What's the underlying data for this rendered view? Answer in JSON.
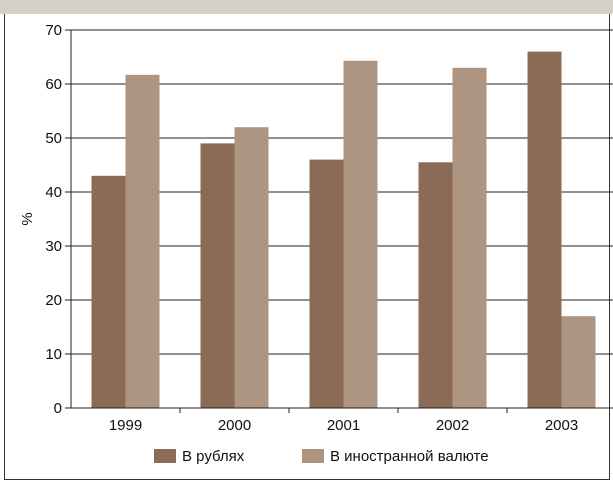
{
  "chart_data": {
    "type": "bar",
    "categories": [
      "1999",
      "2000",
      "2001",
      "2002",
      "2003"
    ],
    "series": [
      {
        "name": "В рублях",
        "values": [
          43,
          49,
          46,
          45.5,
          66
        ],
        "color": "#8b6b55"
      },
      {
        "name": "В иностранной валюте",
        "values": [
          61.7,
          52,
          64.3,
          63,
          17
        ],
        "color": "#ad9582"
      }
    ],
    "title": "",
    "xlabel": "",
    "ylabel": "%",
    "ylim": [
      0,
      70
    ],
    "yticks": [
      0,
      10,
      20,
      30,
      40,
      50,
      60,
      70
    ],
    "grid": true,
    "legend": "bottom"
  }
}
